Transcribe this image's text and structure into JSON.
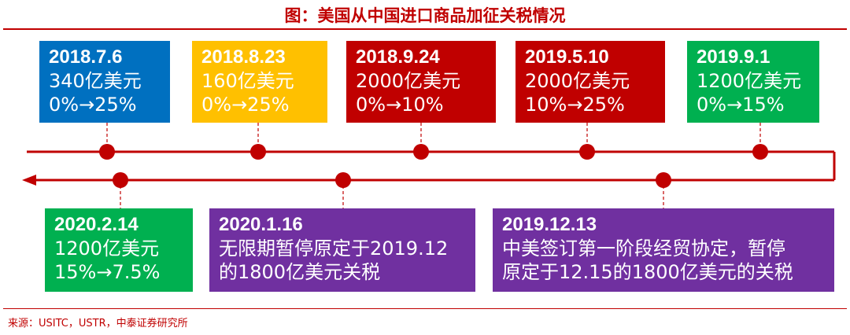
{
  "title": "图：美国从中国进口商品加征关税情况",
  "source": "来源：USITC，USTR，中泰证券研究所",
  "colors": {
    "red": "#c00000",
    "blue": "#0070c0",
    "yellow": "#ffc000",
    "green": "#00b050",
    "purple": "#7030a0",
    "line": "#c00000"
  },
  "top_events": [
    {
      "date": "2018.7.6",
      "amount": "340亿美元",
      "rate": "0%→25%",
      "color": "#0070c0"
    },
    {
      "date": "2018.8.23",
      "amount": "160亿美元",
      "rate": "0%→25%",
      "color": "#ffc000"
    },
    {
      "date": "2018.9.24",
      "amount": "2000亿美元",
      "rate": "0%→10%",
      "color": "#c00000"
    },
    {
      "date": "2019.5.10",
      "amount": "2000亿美元",
      "rate": "10%→25%",
      "color": "#c00000"
    },
    {
      "date": "2019.9.1",
      "amount": "1200亿美元",
      "rate": "0%→15%",
      "color": "#00b050"
    }
  ],
  "bottom_events": [
    {
      "date": "2020.2.14",
      "line1": "1200亿美元",
      "line2": "15%→7.5%",
      "color": "#00b050"
    },
    {
      "date": "2020.1.16",
      "line1": "无限期暂停原定于2019.12",
      "line2": "的1800亿美元关税",
      "color": "#7030a0"
    },
    {
      "date": "2019.12.13",
      "line1": "中美签订第一阶段经贸协定，暂停",
      "line2": "原定于12.15的1800亿美元的关税",
      "color": "#7030a0"
    }
  ]
}
